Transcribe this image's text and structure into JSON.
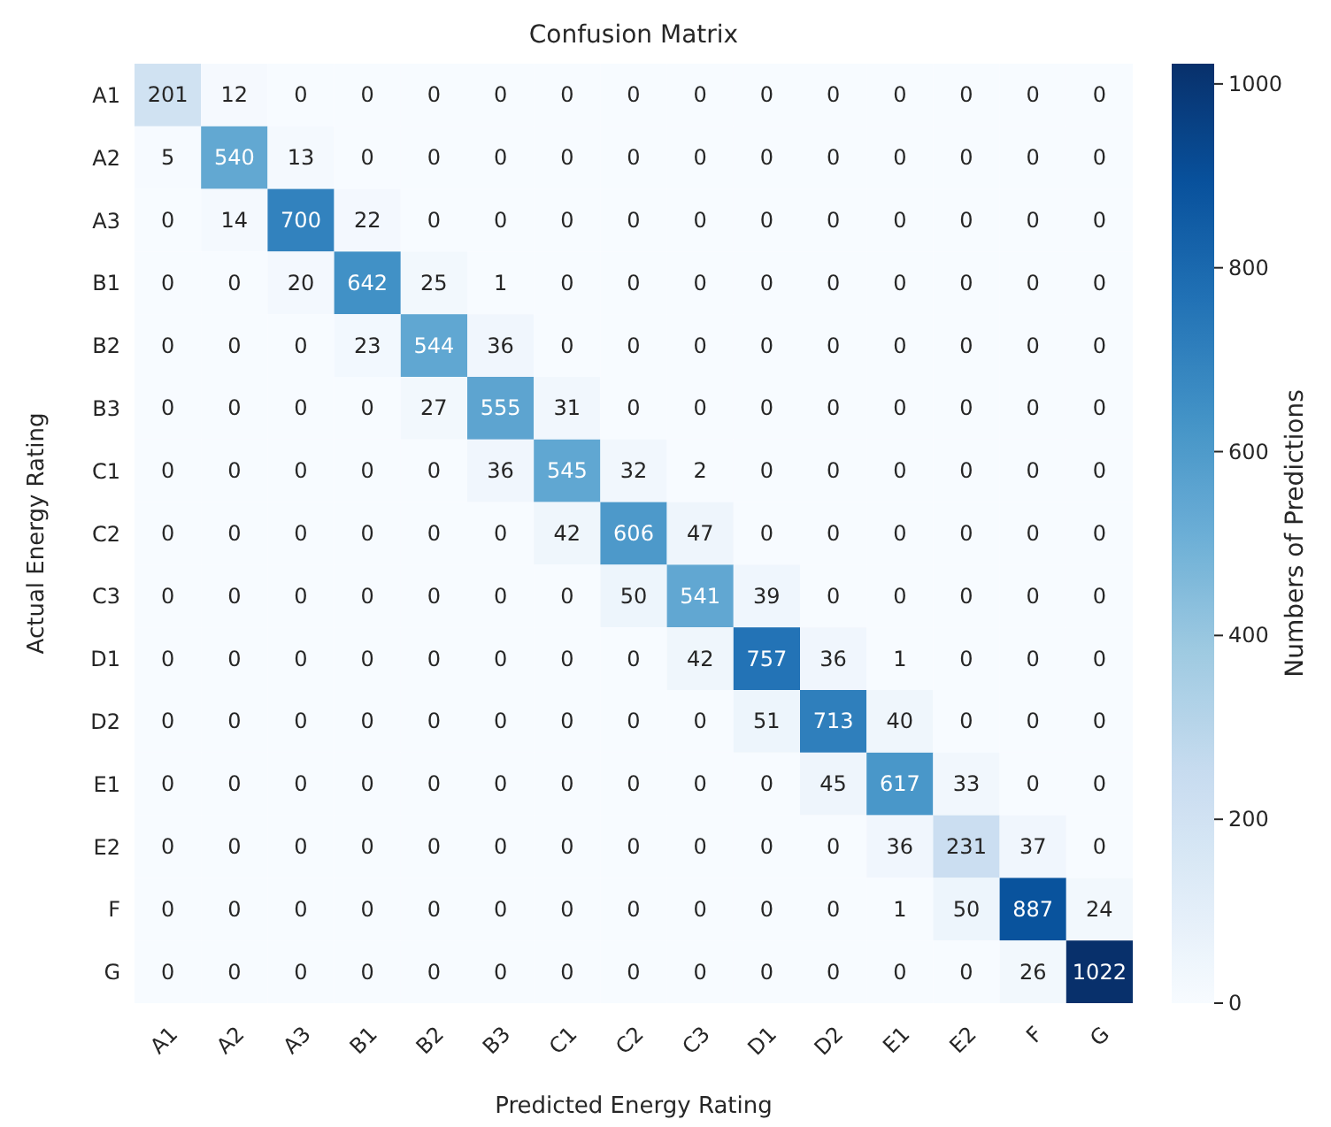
{
  "chart_data": {
    "type": "heatmap",
    "title": "Confusion Matrix",
    "xlabel": "Predicted Energy Rating",
    "ylabel": "Actual  Energy Rating",
    "clabel": "Numbers of Predictions",
    "categories": [
      "A1",
      "A2",
      "A3",
      "B1",
      "B2",
      "B3",
      "C1",
      "C2",
      "C3",
      "D1",
      "D2",
      "E1",
      "E2",
      "F",
      "G"
    ],
    "y_categories": [
      "A1",
      "A2",
      "A3",
      "B1",
      "B2",
      "B3",
      "C1",
      "C2",
      "C3",
      "D1",
      "D2",
      "E1",
      "E2",
      "F",
      "G"
    ],
    "cells": [
      [
        201,
        12,
        0,
        0,
        0,
        0,
        0,
        0,
        0,
        0,
        0,
        0,
        0,
        0,
        0
      ],
      [
        5,
        540,
        13,
        0,
        0,
        0,
        0,
        0,
        0,
        0,
        0,
        0,
        0,
        0,
        0
      ],
      [
        0,
        14,
        700,
        22,
        0,
        0,
        0,
        0,
        0,
        0,
        0,
        0,
        0,
        0,
        0
      ],
      [
        0,
        0,
        20,
        642,
        25,
        1,
        0,
        0,
        0,
        0,
        0,
        0,
        0,
        0,
        0
      ],
      [
        0,
        0,
        0,
        23,
        544,
        36,
        0,
        0,
        0,
        0,
        0,
        0,
        0,
        0,
        0
      ],
      [
        0,
        0,
        0,
        0,
        27,
        555,
        31,
        0,
        0,
        0,
        0,
        0,
        0,
        0,
        0
      ],
      [
        0,
        0,
        0,
        0,
        0,
        36,
        545,
        32,
        2,
        0,
        0,
        0,
        0,
        0,
        0
      ],
      [
        0,
        0,
        0,
        0,
        0,
        0,
        42,
        606,
        47,
        0,
        0,
        0,
        0,
        0,
        0
      ],
      [
        0,
        0,
        0,
        0,
        0,
        0,
        0,
        50,
        541,
        39,
        0,
        0,
        0,
        0,
        0
      ],
      [
        0,
        0,
        0,
        0,
        0,
        0,
        0,
        0,
        42,
        757,
        36,
        1,
        0,
        0,
        0
      ],
      [
        0,
        0,
        0,
        0,
        0,
        0,
        0,
        0,
        0,
        51,
        713,
        40,
        0,
        0,
        0
      ],
      [
        0,
        0,
        0,
        0,
        0,
        0,
        0,
        0,
        0,
        0,
        45,
        617,
        33,
        0,
        0
      ],
      [
        0,
        0,
        0,
        0,
        0,
        0,
        0,
        0,
        0,
        0,
        0,
        36,
        231,
        37,
        0
      ],
      [
        0,
        0,
        0,
        0,
        0,
        0,
        0,
        0,
        0,
        0,
        0,
        1,
        50,
        887,
        24
      ],
      [
        0,
        0,
        0,
        0,
        0,
        0,
        0,
        0,
        0,
        0,
        0,
        0,
        0,
        26,
        1022
      ]
    ],
    "clim": [
      0,
      1022
    ],
    "cticks": [
      0,
      200,
      400,
      600,
      800,
      1000
    ],
    "data_labels": true
  }
}
